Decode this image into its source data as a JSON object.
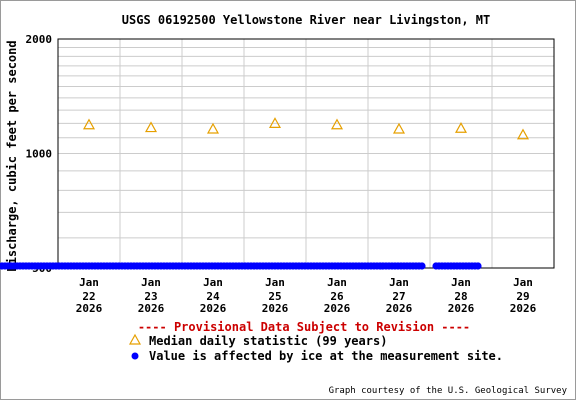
{
  "chart_data": {
    "type": "scatter",
    "title": "USGS 06192500 Yellowstone River near Livingston, MT",
    "ylabel": "Discharge, cubic feet per second",
    "xlabel": "",
    "y_scale": "log",
    "ylim": [
      500,
      2000
    ],
    "y_ticks": [
      "500",
      "1000",
      "2000"
    ],
    "x_ticks": [
      {
        "month": "Jan",
        "day": "22",
        "year": "2026"
      },
      {
        "month": "Jan",
        "day": "23",
        "year": "2026"
      },
      {
        "month": "Jan",
        "day": "24",
        "year": "2026"
      },
      {
        "month": "Jan",
        "day": "25",
        "year": "2026"
      },
      {
        "month": "Jan",
        "day": "26",
        "year": "2026"
      },
      {
        "month": "Jan",
        "day": "27",
        "year": "2026"
      },
      {
        "month": "Jan",
        "day": "28",
        "year": "2026"
      },
      {
        "month": "Jan",
        "day": "29",
        "year": "2026"
      }
    ],
    "grid": true,
    "legend_placement": "bottom",
    "series": [
      {
        "name": "Median daily statistic (99 years)",
        "marker": "triangle-open",
        "color": "#e6a000",
        "x": [
          "2026-01-22",
          "2026-01-23",
          "2026-01-24",
          "2026-01-25",
          "2026-01-26",
          "2026-01-27",
          "2026-01-28",
          "2026-01-29"
        ],
        "values": [
          1190,
          1170,
          1160,
          1200,
          1190,
          1160,
          1165,
          1120
        ]
      },
      {
        "name": "Value is affected by ice at the measurement site.",
        "marker": "dot",
        "color": "#0000ff",
        "segments": [
          {
            "start": "2026-01-21",
            "end": "2026-01-27",
            "value": 500
          },
          {
            "start": "2026-01-28",
            "end": "2026-01-28",
            "value": 500
          }
        ]
      }
    ],
    "provisional_note": "---- Provisional Data Subject to Revision ----",
    "credit": "Graph courtesy of the U.S. Geological Survey"
  }
}
